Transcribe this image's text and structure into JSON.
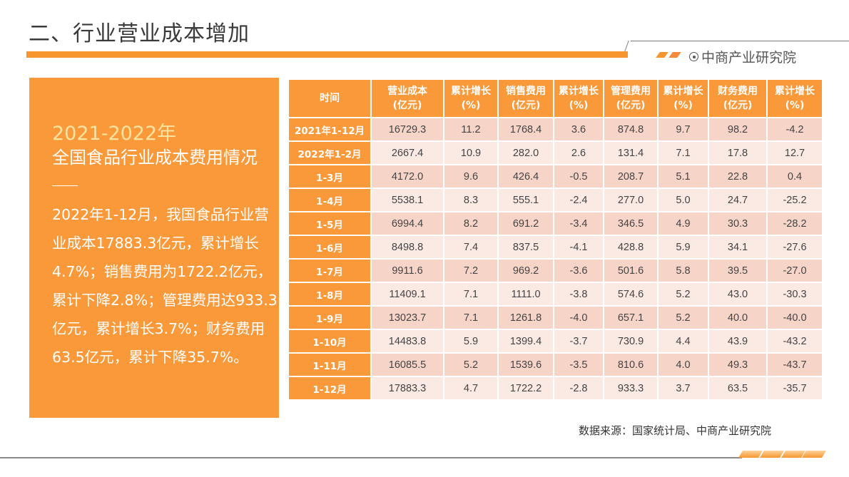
{
  "header": {
    "title": "二、行业营业成本增加",
    "brand": "中商产业研究院",
    "accent_color": "#f7962f"
  },
  "left_panel": {
    "year": "2021-2022年",
    "subtitle": "全国食品行业成本费用情况",
    "body": "2022年1-12月，我国食品行业营业成本17883.3亿元，累计增长4.7%；销售费用为1722.2亿元，累计下降2.8%；管理费用达933.3亿元，累计增长3.7%；财务费用63.5亿元，累计下降35.7%。"
  },
  "table": {
    "columns": [
      {
        "l1": "时间",
        "l2": ""
      },
      {
        "l1": "营业成本",
        "l2": "(亿元)"
      },
      {
        "l1": "累计增长",
        "l2": "(%)"
      },
      {
        "l1": "销售费用",
        "l2": "(亿元)"
      },
      {
        "l1": "累计增长",
        "l2": "(%)"
      },
      {
        "l1": "管理费用",
        "l2": "(亿元)"
      },
      {
        "l1": "累计增长",
        "l2": "(%)"
      },
      {
        "l1": "财务费用",
        "l2": "(亿元)"
      },
      {
        "l1": "累计增长",
        "l2": "(%)"
      }
    ],
    "rows": [
      [
        "2021年1-12月",
        "16729.3",
        "11.2",
        "1768.4",
        "3.6",
        "874.8",
        "9.7",
        "98.2",
        "-4.2"
      ],
      [
        "2022年1-2月",
        "2667.4",
        "10.9",
        "282.0",
        "2.6",
        "131.4",
        "7.1",
        "17.8",
        "12.7"
      ],
      [
        "1-3月",
        "4172.0",
        "9.6",
        "426.4",
        "-0.5",
        "208.7",
        "5.1",
        "22.8",
        "0.4"
      ],
      [
        "1-4月",
        "5538.1",
        "8.3",
        "555.1",
        "-2.4",
        "277.0",
        "5.0",
        "24.7",
        "-25.2"
      ],
      [
        "1-5月",
        "6994.4",
        "8.2",
        "691.2",
        "-3.4",
        "346.5",
        "4.9",
        "30.3",
        "-28.2"
      ],
      [
        "1-6月",
        "8498.8",
        "7.4",
        "837.5",
        "-4.1",
        "428.8",
        "5.9",
        "34.1",
        "-27.6"
      ],
      [
        "1-7月",
        "9911.6",
        "7.2",
        "969.2",
        "-3.6",
        "501.6",
        "5.8",
        "39.5",
        "-27.0"
      ],
      [
        "1-8月",
        "11409.1",
        "7.1",
        "1111.0",
        "-3.8",
        "574.6",
        "5.2",
        "43.0",
        "-30.3"
      ],
      [
        "1-9月",
        "13023.7",
        "7.1",
        "1261.8",
        "-4.0",
        "657.1",
        "5.2",
        "40.0",
        "-40.0"
      ],
      [
        "1-10月",
        "14483.8",
        "5.9",
        "1399.4",
        "-3.7",
        "730.9",
        "4.4",
        "43.9",
        "-43.2"
      ],
      [
        "1-11月",
        "16085.5",
        "5.2",
        "1539.6",
        "-3.5",
        "810.6",
        "4.0",
        "49.3",
        "-43.7"
      ],
      [
        "1-12月",
        "17883.3",
        "4.7",
        "1722.2",
        "-2.8",
        "933.3",
        "3.7",
        "63.5",
        "-35.7"
      ]
    ]
  },
  "footer": {
    "source": "数据来源：国家统计局、中商产业研究院"
  }
}
